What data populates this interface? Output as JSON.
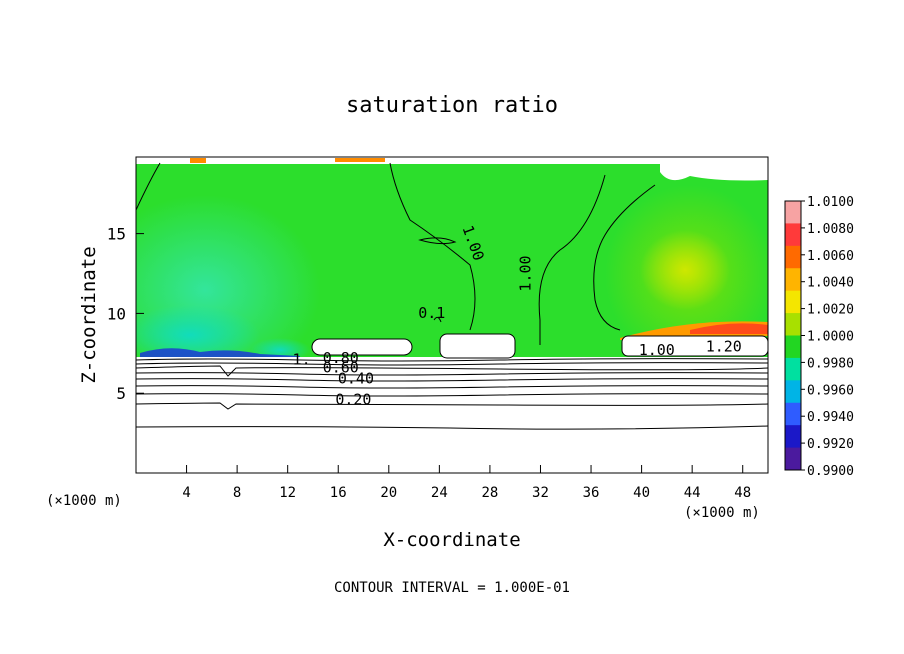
{
  "chart_data": {
    "type": "heatmap",
    "title": "saturation ratio",
    "xlabel": "X-coordinate",
    "ylabel": "Z-coordinate",
    "x_unit": "(×1000 m)",
    "z_unit": "(×1000 m)",
    "xlim": [
      0,
      50
    ],
    "ylim": [
      0,
      19.8
    ],
    "x_ticks": [
      4,
      8,
      12,
      16,
      20,
      24,
      28,
      32,
      36,
      40,
      44,
      48
    ],
    "y_ticks": [
      5,
      10,
      15
    ],
    "contour_interval_text": "CONTOUR INTERVAL = 1.000E-01",
    "colorbar": {
      "labels": [
        "1.0100",
        "1.0080",
        "1.0060",
        "1.0040",
        "1.0020",
        "1.0000",
        "0.9980",
        "0.9960",
        "0.9940",
        "0.9920",
        "0.9900"
      ],
      "colors": [
        "#f7a3a3",
        "#ff3a3a",
        "#ff6a00",
        "#ffb400",
        "#f4e600",
        "#a8e000",
        "#22d622",
        "#00e0a0",
        "#00b4e6",
        "#2f5cff",
        "#1b18c8",
        "#4b1a9e"
      ]
    },
    "contour_labels": [
      {
        "text": "0.80",
        "x": 16.2,
        "y": 6.9
      },
      {
        "text": "0.60",
        "x": 16.2,
        "y": 6.3
      },
      {
        "text": "0.40",
        "x": 17.4,
        "y": 5.6
      },
      {
        "text": "0.20",
        "x": 17.2,
        "y": 4.3
      },
      {
        "text": "1.00",
        "x": 26.3,
        "y": 14.3
      },
      {
        "text": "1.00",
        "x": 31.2,
        "y": 12.5
      },
      {
        "text": "1.00",
        "x": 41.2,
        "y": 7.4
      },
      {
        "text": "1.20",
        "x": 46.5,
        "y": 7.6
      },
      {
        "text": "0.1",
        "x": 23.4,
        "y": 9.7
      },
      {
        "text": "1.",
        "x": 13.1,
        "y": 6.8
      }
    ]
  }
}
